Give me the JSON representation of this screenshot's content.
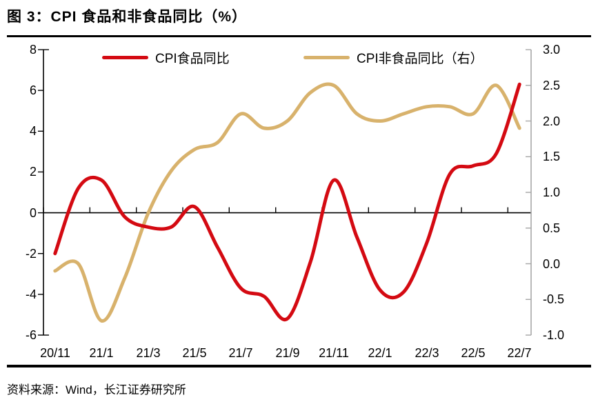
{
  "title": "图 3：CPI 食品和非食品同比（%）",
  "source": "资料来源：Wind，长江证券研究所",
  "colors": {
    "food_line": "#d40a12",
    "nonfood_line": "#d8b26c",
    "left_axis": "#000000",
    "right_axis": "#a6a6a6",
    "zero_line": "#000000",
    "rule": "#000000"
  },
  "legend": [
    {
      "label": "CPI食品同比",
      "color": "#d40a12"
    },
    {
      "label": "CPI非食品同比（右）",
      "color": "#d8b26c"
    }
  ],
  "chart_data": {
    "type": "line",
    "smoothed": true,
    "grid": false,
    "legend_position": "top",
    "x": [
      "20/11",
      "20/12",
      "21/1",
      "21/2",
      "21/3",
      "21/4",
      "21/5",
      "21/6",
      "21/7",
      "21/8",
      "21/9",
      "21/10",
      "21/11",
      "21/12",
      "22/1",
      "22/2",
      "22/3",
      "22/4",
      "22/5",
      "22/6",
      "22/7"
    ],
    "x_tick_labels": [
      "20/11",
      "21/1",
      "21/3",
      "21/5",
      "21/7",
      "21/9",
      "21/11",
      "22/1",
      "22/3",
      "22/5",
      "22/7"
    ],
    "series": [
      {
        "name": "CPI食品同比",
        "axis": "left",
        "color": "#d40a12",
        "values": [
          -2.0,
          1.2,
          1.6,
          -0.2,
          -0.7,
          -0.7,
          0.3,
          -1.7,
          -3.7,
          -4.1,
          -5.2,
          -2.4,
          1.6,
          -1.2,
          -3.8,
          -3.9,
          -1.5,
          1.9,
          2.3,
          2.9,
          6.3
        ]
      },
      {
        "name": "CPI非食品同比（右）",
        "axis": "right",
        "color": "#d8b26c",
        "values": [
          -0.1,
          0.0,
          -0.8,
          -0.2,
          0.7,
          1.3,
          1.6,
          1.7,
          2.1,
          1.9,
          2.0,
          2.4,
          2.5,
          2.1,
          2.0,
          2.1,
          2.2,
          2.2,
          2.1,
          2.5,
          1.9
        ]
      }
    ],
    "left_axis": {
      "min": -6,
      "max": 8,
      "ticks": [
        8,
        6,
        4,
        2,
        0,
        -2,
        -4,
        -6
      ]
    },
    "right_axis": {
      "min": -1.0,
      "max": 3.0,
      "ticks": [
        "3.0",
        "2.5",
        "2.0",
        "1.5",
        "1.0",
        "0.5",
        "0.0",
        "-0.5",
        "-1.0"
      ]
    },
    "zero_line": true
  }
}
